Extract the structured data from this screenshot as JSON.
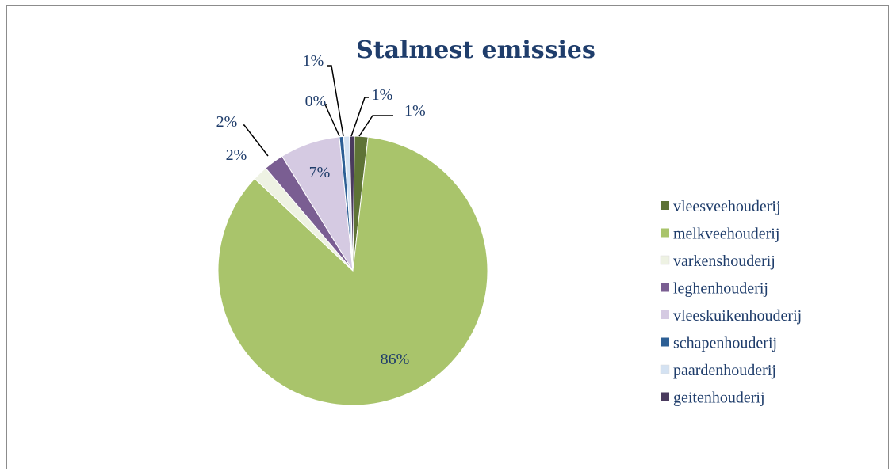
{
  "chart_data": {
    "type": "pie",
    "title": "Stalmest emissies",
    "legend_position": "right",
    "slices": [
      {
        "name": "vleesveehouderij",
        "value": 1,
        "label": "1%",
        "color": "#5e7336"
      },
      {
        "name": "melkveehouderij",
        "value": 86,
        "label": "86%",
        "color": "#a9c46b"
      },
      {
        "name": "varkenshouderij",
        "value": 2,
        "label": "2%",
        "color": "#eef2e3"
      },
      {
        "name": "leghenhouderij",
        "value": 2,
        "label": "2%",
        "color": "#7a5e92"
      },
      {
        "name": "vleeskuikenhouderij",
        "value": 7,
        "label": "7%",
        "color": "#d5cae2"
      },
      {
        "name": "schapenhouderij",
        "value": 0,
        "label": "0%",
        "color": "#2d5f95"
      },
      {
        "name": "paardenhouderij",
        "value": 1,
        "label": "1%",
        "color": "#d4e2f2"
      },
      {
        "name": "geitenhouderij",
        "value": 1,
        "label": "1%",
        "color": "#4a3b5e"
      }
    ]
  }
}
